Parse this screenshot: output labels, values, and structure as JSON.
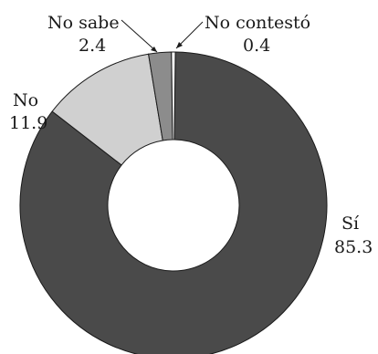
{
  "chart_data": {
    "type": "pie",
    "variant": "donut",
    "categories": [
      "Sí",
      "No",
      "No sabe",
      "No contestó"
    ],
    "values": [
      85.3,
      11.9,
      2.4,
      0.4
    ],
    "colors": [
      "#4a4a4a",
      "#d0d0d0",
      "#8c8c8c",
      "#ffffff"
    ],
    "labels": [
      {
        "name": "Sí",
        "value": "85.3"
      },
      {
        "name": "No",
        "value": "11.9"
      },
      {
        "name": "No sabe",
        "value": "2.4"
      },
      {
        "name": "No contestó",
        "value": "0.4"
      }
    ],
    "title": "",
    "legend": "none"
  }
}
